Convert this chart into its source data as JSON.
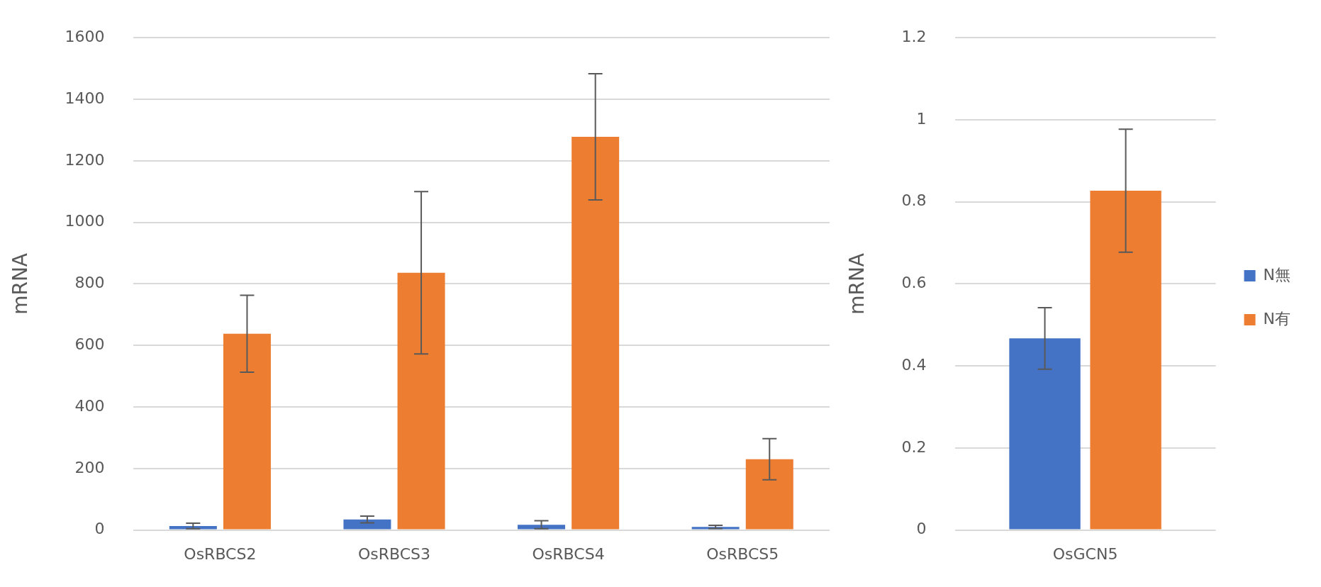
{
  "chart_data": [
    {
      "type": "bar",
      "ylabel": "mRNA",
      "categories": [
        "OsRBCS2",
        "OsRBCS3",
        "OsRBCS4",
        "OsRBCS5"
      ],
      "series": [
        {
          "color": "#4472c4",
          "values": [
            13,
            34,
            17,
            10
          ],
          "errors": [
            9,
            11,
            13,
            5
          ]
        },
        {
          "color": "#ed7d31",
          "values": [
            638,
            836,
            1278,
            230
          ],
          "errors": [
            125,
            264,
            205,
            67
          ]
        }
      ],
      "ylim": [
        0,
        1600
      ],
      "yticks": [
        0,
        200,
        400,
        600,
        800,
        1000,
        1200,
        1400,
        1600
      ],
      "grid": "y"
    },
    {
      "type": "bar",
      "ylabel": "mRNA",
      "categories": [
        "OsGCN5"
      ],
      "series": [
        {
          "name": "N無",
          "color": "#4472c4",
          "values": [
            0.467
          ],
          "errors": [
            0.075
          ]
        },
        {
          "name": "N有",
          "color": "#ed7d31",
          "values": [
            0.827
          ],
          "errors": [
            0.15
          ]
        }
      ],
      "ylim": [
        0,
        1.2
      ],
      "yticks": [
        0,
        0.2,
        0.4,
        0.6,
        0.8,
        1,
        1.2
      ],
      "grid": "y",
      "legend": "right"
    }
  ]
}
